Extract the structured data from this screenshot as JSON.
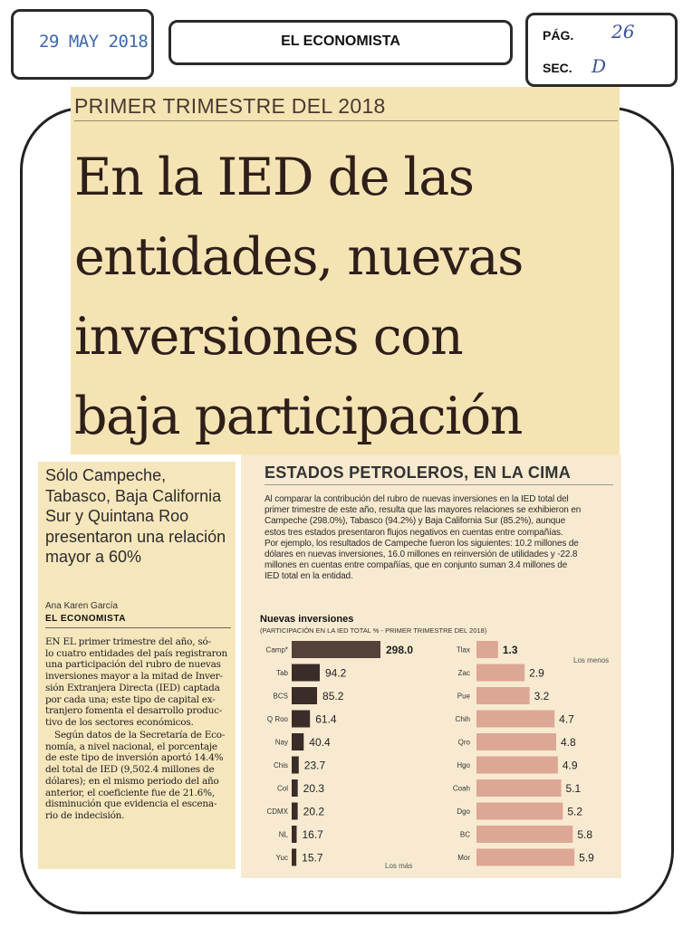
{
  "clipping": {
    "date_stamp": "29 MAY 2018",
    "publication": "EL ECONOMISTA",
    "page_label": "PÁG.",
    "page_value": "26",
    "section_label": "SEC.",
    "section_value": "D"
  },
  "article": {
    "kicker": "PRIMER TRIMESTRE DEL 2018",
    "headline_lines": [
      "En la IED de las",
      "entidades, nuevas",
      "inversiones con",
      "baja participación"
    ],
    "deck_lines": [
      "Sólo Campeche,",
      "Tabasco, Baja California",
      "Sur y Quintana Roo",
      "presentaron una relación",
      "mayor a 60%"
    ],
    "author": "Ana Karen García",
    "outlet": "EL ECONOMISTA",
    "body_lines": [
      "EN EL primer trimestre del año, só-",
      "lo cuatro entidades del país registraron",
      "una participación del rubro de nuevas",
      "inversiones mayor a la mitad de Inver-",
      "sión Extranjera Directa (IED) captada",
      "por cada una; este tipo de capital ex-",
      "tranjero fomenta el desarrollo produc-",
      "tivo de los sectores económicos.",
      "Según datos de la Secretaría de Eco-",
      "nomía, a nivel nacional, el porcentaje",
      "de este tipo de inversión aportó 14.4%",
      "del total de IED (9,502.4 millones de",
      "dólares); en el mismo periodo del año",
      "anterior, el coeficiente fue de 21.6%,",
      "disminución que evidencia el escena-",
      "rio de indecisión."
    ],
    "sidebar_heading": "ESTADOS PETROLEROS, EN LA CIMA",
    "sidebar_lines": [
      "Al comparar la contribución del rubro de nuevas inversiones en la IED total del",
      "primer trimestre de este año, resulta que las mayores relaciones se exhibieron en",
      "Campeche (298.0%), Tabasco (94.2%) y Baja California Sur (85.2%), aunque",
      "estos tres estados presentaron flujos negativos en cuentas entre compañías.",
      "Por ejemplo, los resultados de Campeche fueron los siguientes: 10.2 millones de",
      "dólares en nuevas inversiones, 16.0 millones en reinversión de utilidades y -22.8",
      "millones en cuentas entre compañías, que en conjunto suman 3.4 millones de",
      "IED total en la entidad."
    ]
  },
  "chart_data": {
    "type": "bar",
    "orientation": "horizontal",
    "title": "Nuevas inversiones",
    "subtitle": "(PARTICIPACIÓN EN LA IED TOTAL % - PRIMER TRIMESTRE DEL 2018)",
    "panels": [
      {
        "note": "Los más",
        "categories": [
          "Camp*",
          "Tab",
          "BCS",
          "Q Roo",
          "Nay",
          "Chis",
          "Col",
          "CDMX",
          "NL",
          "Yuc"
        ],
        "values": [
          298.0,
          94.2,
          85.2,
          61.4,
          40.4,
          23.7,
          20.3,
          20.2,
          16.7,
          15.7
        ],
        "value_labels": [
          "298.0",
          "94.2",
          "85.2",
          "61.4",
          "40.4",
          "23.7",
          "20.3",
          "20.2",
          "16.7",
          "15.7"
        ],
        "bar_color": "#3a2c28",
        "highlight": "Camp*",
        "highlight_color": "#54413a"
      },
      {
        "note": "Los menos",
        "categories": [
          "Tlax",
          "Zac",
          "Pue",
          "Chih",
          "Qro",
          "Hgo",
          "Coah",
          "Dgo",
          "BC",
          "Mor"
        ],
        "values": [
          1.3,
          2.9,
          3.2,
          4.7,
          4.8,
          4.9,
          5.1,
          5.2,
          5.8,
          5.9
        ],
        "value_labels": [
          "1.3",
          "2.9",
          "3.2",
          "4.7",
          "4.8",
          "4.9",
          "5.1",
          "5.2",
          "5.8",
          "5.9"
        ],
        "bar_color": "#dca794",
        "highlight": "Tlax"
      }
    ]
  }
}
